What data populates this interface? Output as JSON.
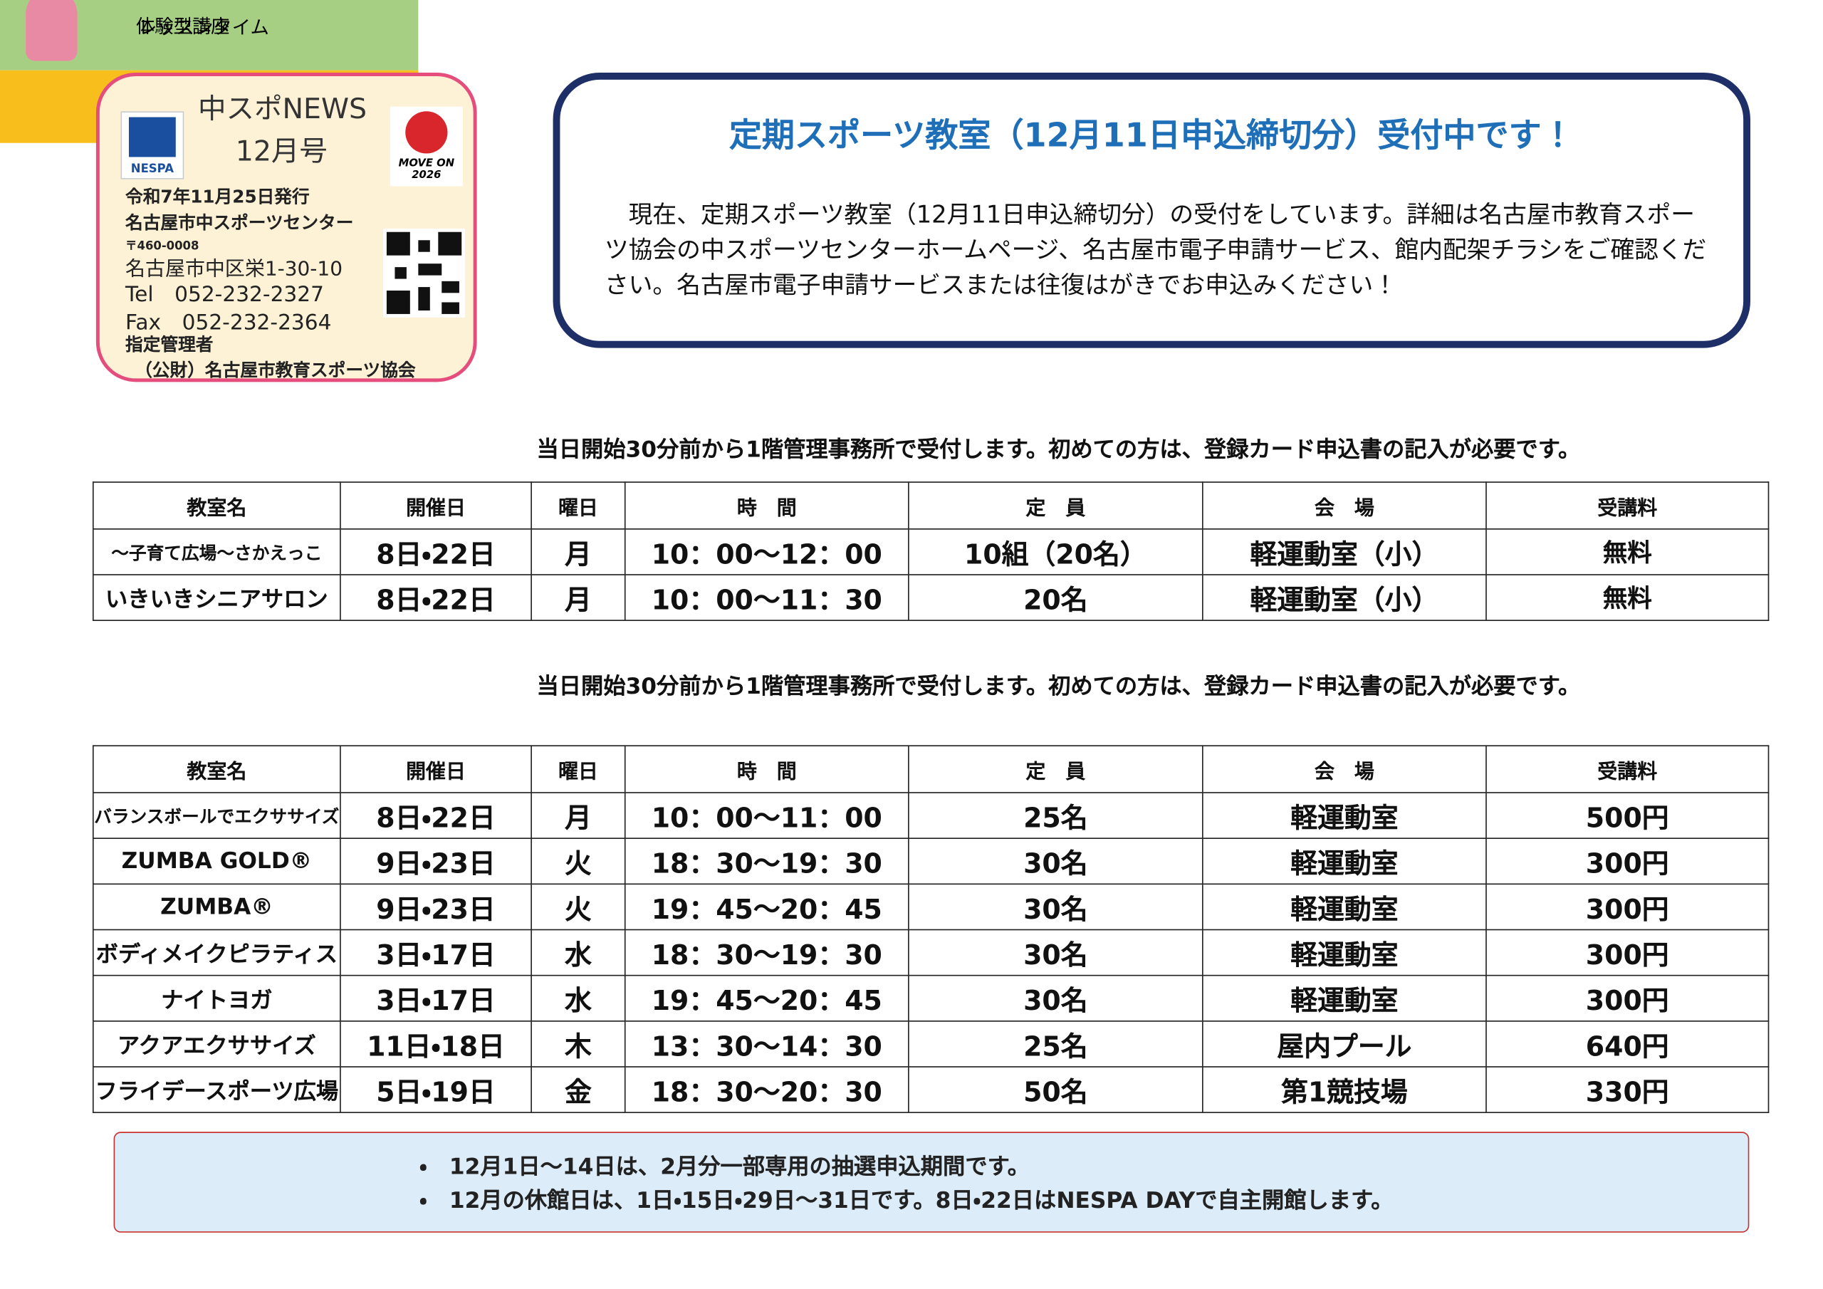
{
  "header": {
    "title": "中スポNEWS",
    "issue": "12月号",
    "logo_left": "NESPA",
    "logo_right": "MOVE ON 2026",
    "lines": [
      "令和7年11月25日発行",
      "名古屋市中スポーツセンター",
      "〒460-0008",
      "名古屋市中区栄1-30-10",
      "Tel　052-232-2327",
      "Fax　052-232-2364",
      "指定管理者",
      "（公財）名古屋市教育スポーツ協会"
    ]
  },
  "notice": {
    "title": "定期スポーツ教室（12月11日申込締切分）受付中です！",
    "body": "現在、定期スポーツ教室（12月11日申込締切分）の受付をしています。詳細は名古屋市教育スポーツ協会の中スポーツセンターホームページ、名古屋市電子申請サービス、館内配架チラシをご確認ください。名古屋市電子申請サービスまたは往復はがきでお申込みください！"
  },
  "sections": [
    {
      "title": "体験型講座",
      "note": "当日開始30分前から1階管理事務所で受付します。初めての方は、登録カード申込書の記入が必要です。",
      "columns": [
        "教室名",
        "開催日",
        "曜日",
        "時　間",
        "定　員",
        "会　場",
        "受講料"
      ],
      "rows": [
        [
          "～子育て広場～さかえっこ",
          "8日・22日",
          "月",
          "10：00～12：00",
          "10組（20名）",
          "軽運動室（小）",
          "無料"
        ],
        [
          "いきいきシニアサロン",
          "8日・22日",
          "月",
          "10：00～11：30",
          "20名",
          "軽運動室（小）",
          "無料"
        ]
      ]
    },
    {
      "title": "レッスンタイム",
      "note": "当日開始30分前から1階管理事務所で受付します。初めての方は、登録カード申込書の記入が必要です。",
      "columns": [
        "教室名",
        "開催日",
        "曜日",
        "時　間",
        "定　員",
        "会　場",
        "受講料"
      ],
      "rows": [
        [
          "バランスボールでエクササイズ",
          "8日・22日",
          "月",
          "10：00～11：00",
          "25名",
          "軽運動室",
          "500円"
        ],
        [
          "ZUMBA GOLD®",
          "9日・23日",
          "火",
          "18：30～19：30",
          "30名",
          "軽運動室",
          "300円"
        ],
        [
          "ZUMBA®",
          "9日・23日",
          "火",
          "19：45～20：45",
          "30名",
          "軽運動室",
          "300円"
        ],
        [
          "ボディメイクピラティス",
          "3日・17日",
          "水",
          "18：30～19：30",
          "30名",
          "軽運動室",
          "300円"
        ],
        [
          "ナイトヨガ",
          "3日・17日",
          "水",
          "19：45～20：45",
          "30名",
          "軽運動室",
          "300円"
        ],
        [
          "アクアエクササイズ",
          "11日・18日",
          "木",
          "13：30～14：30",
          "25名",
          "屋内プール",
          "640円"
        ],
        [
          "フライデースポーツ広場",
          "5日・19日",
          "金",
          "18：30～20：30",
          "50名",
          "第1競技場",
          "330円"
        ]
      ]
    }
  ],
  "footer": {
    "notes": [
      "・　12月1日～14日は、2月分一部専用の抽選申込期間です。",
      "・　12月の休館日は、1日・15日・29日～31日です。8日・22日はNESPA DAYで自主開館します。"
    ]
  }
}
